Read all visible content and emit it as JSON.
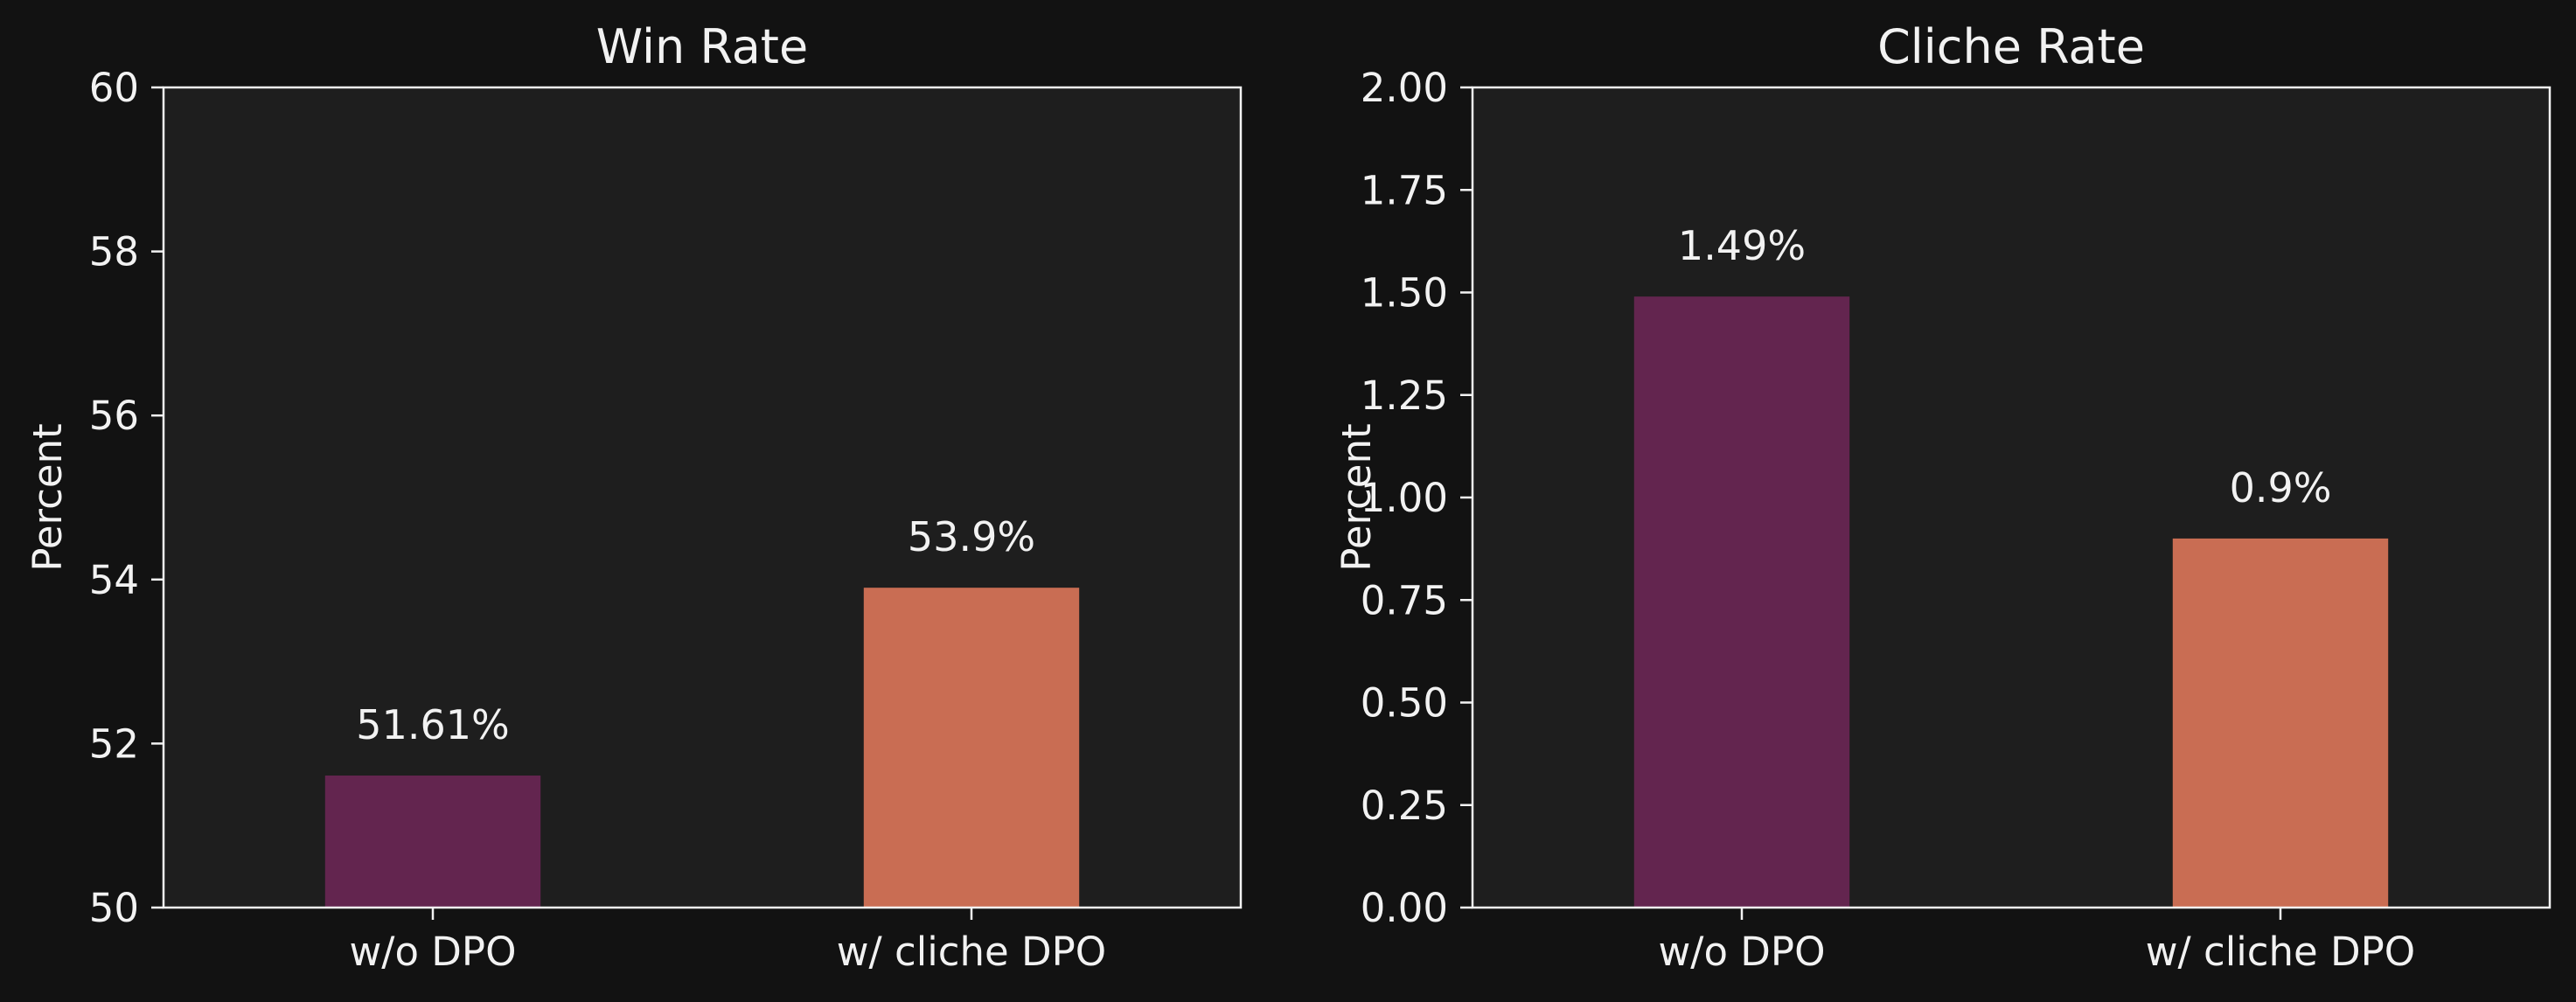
{
  "chart_data": [
    {
      "type": "bar",
      "title": "Win Rate",
      "xlabel": "",
      "ylabel": "Percent",
      "categories": [
        "w/o DPO",
        "w/ cliche DPO"
      ],
      "values": [
        51.61,
        53.9
      ],
      "value_labels": [
        "51.61%",
        "53.9%"
      ],
      "colors": [
        "#63254f",
        "#c96d53"
      ],
      "ylim": [
        50,
        60
      ],
      "yticks": [
        50,
        52,
        54,
        56,
        58,
        60
      ],
      "ytick_labels": [
        "50",
        "52",
        "54",
        "56",
        "58",
        "60"
      ],
      "grid": false,
      "legend": "none"
    },
    {
      "type": "bar",
      "title": "Cliche Rate",
      "xlabel": "",
      "ylabel": "Percent",
      "categories": [
        "w/o DPO",
        "w/ cliche DPO"
      ],
      "values": [
        1.49,
        0.9
      ],
      "value_labels": [
        "1.49%",
        "0.9%"
      ],
      "colors": [
        "#63254f",
        "#c96d53"
      ],
      "ylim": [
        0,
        2
      ],
      "yticks": [
        0,
        0.25,
        0.5,
        0.75,
        1,
        1.25,
        1.5,
        1.75,
        2
      ],
      "ytick_labels": [
        "0.00",
        "0.25",
        "0.50",
        "0.75",
        "1.00",
        "1.25",
        "1.50",
        "1.75",
        "2.00"
      ],
      "grid": false,
      "legend": "none"
    }
  ],
  "colors": {
    "figure_background": "#121212",
    "axes_background": "#1e1e1e",
    "axis_line": "#f2f2f2",
    "text": "#f2f2f2"
  }
}
